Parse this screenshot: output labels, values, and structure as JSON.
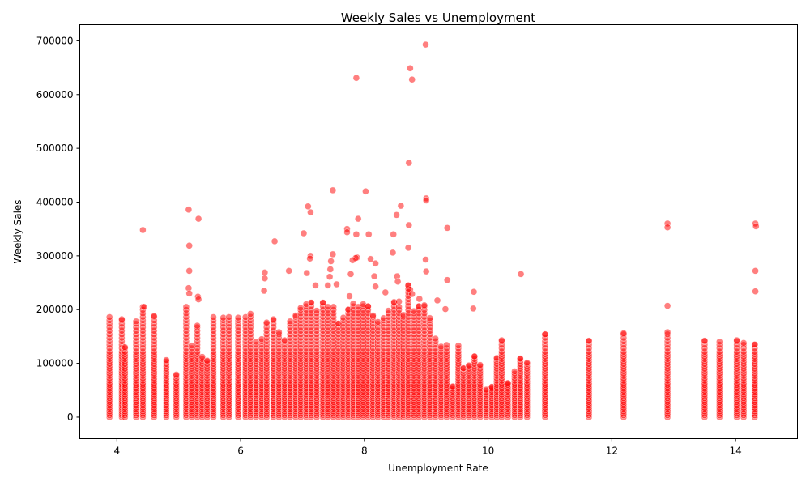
{
  "chart_data": {
    "type": "scatter",
    "title": "Weekly Sales vs Unemployment",
    "xlabel": "Unemployment Rate",
    "ylabel": "Weekly Sales",
    "xlim": [
      3.4,
      15.0
    ],
    "ylim": [
      -40000,
      730000
    ],
    "xticks": [
      4,
      6,
      8,
      10,
      12,
      14
    ],
    "yticks": [
      0,
      100000,
      200000,
      300000,
      400000,
      500000,
      600000,
      700000
    ],
    "grid": false,
    "point_color": "#ff0000",
    "point_edge_color": "#ffffff",
    "point_alpha": 0.5,
    "columns": [
      [
        3.88,
        186000
      ],
      [
        4.08,
        182000
      ],
      [
        4.13,
        130000
      ],
      [
        4.31,
        178000
      ],
      [
        4.42,
        205000
      ],
      [
        4.6,
        188000
      ],
      [
        4.8,
        106000
      ],
      [
        4.96,
        79000
      ],
      [
        5.12,
        205000
      ],
      [
        5.21,
        133000
      ],
      [
        5.3,
        170000
      ],
      [
        5.38,
        112000
      ],
      [
        5.46,
        105000
      ],
      [
        5.56,
        186000
      ],
      [
        5.72,
        185000
      ],
      [
        5.81,
        186000
      ],
      [
        5.96,
        185000
      ],
      [
        6.08,
        186000
      ],
      [
        6.16,
        192000
      ],
      [
        6.25,
        140000
      ],
      [
        6.34,
        145000
      ],
      [
        6.42,
        176000
      ],
      [
        6.53,
        182000
      ],
      [
        6.62,
        158000
      ],
      [
        6.71,
        143000
      ],
      [
        6.8,
        178000
      ],
      [
        6.89,
        189000
      ],
      [
        6.97,
        203000
      ],
      [
        7.06,
        210000
      ],
      [
        7.14,
        213000
      ],
      [
        7.23,
        198000
      ],
      [
        7.33,
        213000
      ],
      [
        7.41,
        205000
      ],
      [
        7.5,
        205000
      ],
      [
        7.58,
        174000
      ],
      [
        7.66,
        185000
      ],
      [
        7.74,
        200000
      ],
      [
        7.82,
        211000
      ],
      [
        7.9,
        205000
      ],
      [
        7.98,
        210000
      ],
      [
        8.06,
        206000
      ],
      [
        8.14,
        189000
      ],
      [
        8.22,
        177000
      ],
      [
        8.31,
        184000
      ],
      [
        8.39,
        198000
      ],
      [
        8.48,
        214000
      ],
      [
        8.56,
        205000
      ],
      [
        8.63,
        190000
      ],
      [
        8.71,
        245000
      ],
      [
        8.8,
        197000
      ],
      [
        8.88,
        206000
      ],
      [
        8.97,
        208000
      ],
      [
        9.06,
        184000
      ],
      [
        9.15,
        146000
      ],
      [
        9.24,
        131000
      ],
      [
        9.33,
        134000
      ],
      [
        9.43,
        57000
      ],
      [
        9.52,
        133000
      ],
      [
        9.6,
        91000
      ],
      [
        9.69,
        96000
      ],
      [
        9.78,
        113000
      ],
      [
        9.87,
        97000
      ],
      [
        9.97,
        51000
      ],
      [
        10.06,
        56000
      ],
      [
        10.14,
        110000
      ],
      [
        10.22,
        143000
      ],
      [
        10.32,
        63000
      ],
      [
        10.43,
        85000
      ],
      [
        10.52,
        109000
      ],
      [
        10.63,
        101000
      ],
      [
        10.92,
        154000
      ],
      [
        11.63,
        142000
      ],
      [
        12.19,
        156000
      ],
      [
        12.9,
        158000
      ],
      [
        13.5,
        142000
      ],
      [
        13.74,
        140000
      ],
      [
        14.02,
        143000
      ],
      [
        14.13,
        138000
      ],
      [
        14.31,
        135000
      ]
    ],
    "points": [
      [
        8.99,
        693000
      ],
      [
        8.74,
        649000
      ],
      [
        7.87,
        631000
      ],
      [
        8.77,
        628000
      ],
      [
        8.72,
        473000
      ],
      [
        7.49,
        422000
      ],
      [
        8.02,
        420000
      ],
      [
        9.0,
        407000
      ],
      [
        9.0,
        403000
      ],
      [
        8.59,
        393000
      ],
      [
        7.09,
        392000
      ],
      [
        5.16,
        386000
      ],
      [
        7.13,
        381000
      ],
      [
        8.52,
        376000
      ],
      [
        7.9,
        369000
      ],
      [
        5.32,
        369000
      ],
      [
        12.9,
        360000
      ],
      [
        14.32,
        360000
      ],
      [
        8.72,
        357000
      ],
      [
        14.33,
        355000
      ],
      [
        12.9,
        353000
      ],
      [
        9.34,
        352000
      ],
      [
        4.42,
        348000
      ],
      [
        7.72,
        350000
      ],
      [
        7.72,
        344000
      ],
      [
        7.02,
        342000
      ],
      [
        7.87,
        340000
      ],
      [
        8.07,
        340000
      ],
      [
        8.47,
        340000
      ],
      [
        6.55,
        327000
      ],
      [
        5.17,
        319000
      ],
      [
        8.71,
        315000
      ],
      [
        8.46,
        306000
      ],
      [
        7.49,
        303000
      ],
      [
        7.13,
        300000
      ],
      [
        7.12,
        295000
      ],
      [
        7.88,
        297000
      ],
      [
        7.86,
        296000
      ],
      [
        8.1,
        294000
      ],
      [
        8.99,
        293000
      ],
      [
        7.81,
        292000
      ],
      [
        7.46,
        290000
      ],
      [
        8.18,
        286000
      ],
      [
        7.45,
        275000
      ],
      [
        6.78,
        272000
      ],
      [
        5.17,
        272000
      ],
      [
        14.32,
        272000
      ],
      [
        9.0,
        271000
      ],
      [
        6.39,
        269000
      ],
      [
        7.07,
        268000
      ],
      [
        7.78,
        266000
      ],
      [
        10.53,
        266000
      ],
      [
        8.53,
        262000
      ],
      [
        8.16,
        262000
      ],
      [
        7.44,
        261000
      ],
      [
        6.39,
        258000
      ],
      [
        9.34,
        255000
      ],
      [
        8.54,
        252000
      ],
      [
        7.55,
        247000
      ],
      [
        7.41,
        245000
      ],
      [
        7.21,
        245000
      ],
      [
        8.18,
        243000
      ],
      [
        5.16,
        240000
      ],
      [
        8.74,
        237000
      ],
      [
        6.38,
        235000
      ],
      [
        14.32,
        234000
      ],
      [
        9.77,
        233000
      ],
      [
        8.34,
        232000
      ],
      [
        5.17,
        230000
      ],
      [
        8.77,
        229000
      ],
      [
        7.76,
        225000
      ],
      [
        5.31,
        224000
      ],
      [
        8.89,
        220000
      ],
      [
        5.32,
        219000
      ],
      [
        9.18,
        217000
      ],
      [
        8.56,
        215000
      ],
      [
        12.9,
        207000
      ],
      [
        4.44,
        205000
      ],
      [
        9.76,
        202000
      ],
      [
        9.31,
        201000
      ]
    ]
  }
}
